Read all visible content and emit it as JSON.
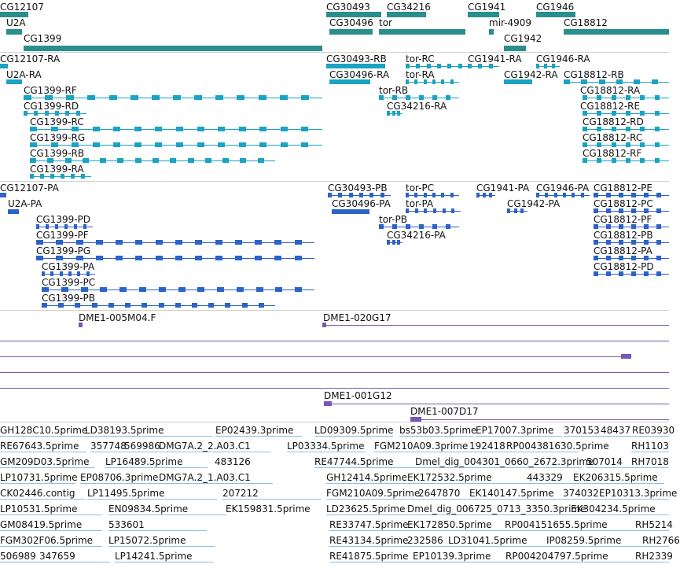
{
  "colors": {
    "gene": "#2a8f8c",
    "cdna": "#1aa3c2",
    "pep": "#2c63c9",
    "clone": "#7b55b5",
    "est": "#8dbfe3"
  },
  "gene_track": {
    "labels": [
      "CG12107",
      "U2A",
      "CG1399",
      "CG30493",
      "CG34216",
      "CG1941",
      "CG1946",
      "CG30496",
      "tor",
      "mir-4909",
      "CG18812",
      "CG1942"
    ]
  },
  "transcript_track": {
    "labels": [
      "CG12107-RA",
      "U2A-RA",
      "CG1399-RF",
      "CG1399-RD",
      "CG1399-RC",
      "CG1399-RG",
      "CG1399-RB",
      "CG1399-RA",
      "CG30493-RB",
      "CG30496-RA",
      "tor-RC",
      "tor-RA",
      "tor-RB",
      "CG34216-RA",
      "CG1941-RA",
      "CG1942-RA",
      "CG1946-RA",
      "CG18812-RB",
      "CG18812-RA",
      "CG18812-RE",
      "CG18812-RD",
      "CG18812-RC",
      "CG18812-RF"
    ]
  },
  "protein_track": {
    "labels": [
      "CG12107-PA",
      "U2A-PA",
      "CG1399-PD",
      "CG1399-PF",
      "CG1399-PG",
      "CG1399-PA",
      "CG1399-PC",
      "CG1399-PB",
      "CG30493-PB",
      "CG30496-PA",
      "tor-PC",
      "tor-PA",
      "tor-PB",
      "CG34216-PA",
      "CG1941-PA",
      "CG1946-PA",
      "CG1942-PA",
      "CG18812-PE",
      "CG18812-PC",
      "CG18812-PF",
      "CG18812-PB",
      "CG18812-PA",
      "CG18812-PD"
    ]
  },
  "clone_track": {
    "labels": [
      "DME1-005M04.F",
      "DME1-020G17",
      "DME1-001G12",
      "DME1-007D17"
    ]
  },
  "est_track": {
    "labels": [
      "GH128C10.5prime",
      "LD38193.5prime",
      "EP02439.3prime",
      "LD09309.5prime",
      "bs53b03.5prime",
      "EP17007.3prime",
      "370153",
      "48437",
      "RE03930",
      "RE67643.5prime",
      "357748",
      "569986",
      "DMG7A.2_2.A03.C1",
      "LP03334.5prime",
      "FGM210A09.3prime",
      "192418",
      "RP004381630.5prime",
      "RH1103",
      "GM209D03.5prime",
      "LP16489.5prime",
      "483126",
      "RE47744.5prime",
      "Dmel_dig_004301_0660_2672.3prime",
      "507014",
      "RH7018",
      "LP10731.5prime",
      "EP08706.3prime",
      "DMG7A.2_1.A03.C1",
      "GH12414.5prime",
      "EK172532.5prime",
      "443329",
      "EK206315.5prime",
      "CK02446.contig",
      "LP11495.5prime",
      "207212",
      "FGM210A09.5prime",
      "2647870",
      "EK140147.5prime",
      "374032",
      "EP10313.3prime",
      "LP10531.5prime",
      "EN09834.5prime",
      "EK159831.5prime",
      "LD23625.5prime",
      "Dmel_dig_006725_0713_3350.3prime",
      "EK304234.5prime",
      "GM08419.5prime",
      "533601",
      "RE33747.5prime",
      "EK172850.5prime",
      "RP004151655.5prime",
      "RH5214",
      "FGM302F06.5prime",
      "LP15072.5prime",
      "RE43134.5prime",
      "232586",
      "LD31041.5prime",
      "IP08259.5prime",
      "RH2766",
      "506989",
      "347659",
      "LP14241.5prime",
      "RE41875.5prime",
      "EP10139.3prime",
      "RP004204797.5prime",
      "RH2339"
    ]
  }
}
